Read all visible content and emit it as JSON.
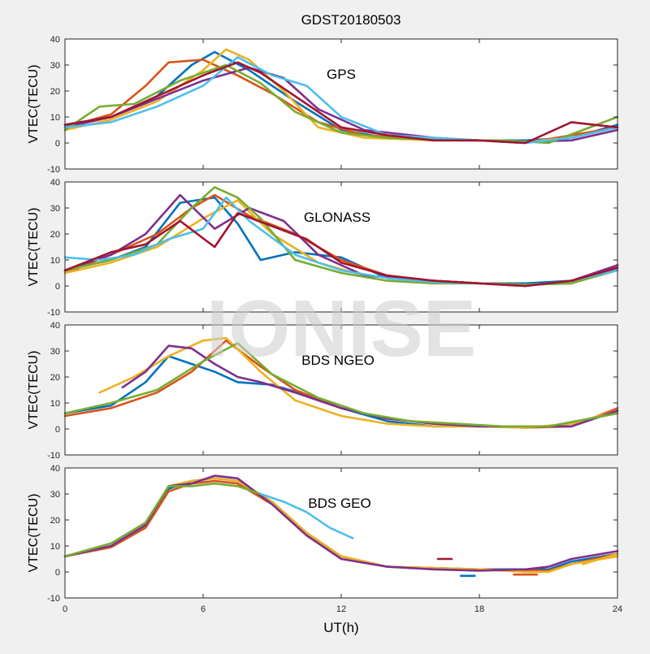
{
  "figure": {
    "title": "GDST20180503",
    "xlabel": "UT(h)",
    "watermark": "IONISE"
  },
  "colors": {
    "background": "#f0f0f0",
    "axes_face": "#ffffff",
    "series_palette": [
      "#0072bd",
      "#d95319",
      "#edb120",
      "#7e2f8e",
      "#77ac30",
      "#4dbeee",
      "#a2142f"
    ]
  },
  "chart_data": [
    {
      "type": "line",
      "label": "GPS",
      "xlabel": "",
      "ylabel": "VTEC(TECU)",
      "xlim": [
        0,
        24
      ],
      "ylim": [
        -10,
        40
      ],
      "xticks": [
        0,
        6,
        12,
        18,
        24
      ],
      "yticks": [
        -10,
        0,
        10,
        20,
        30,
        40
      ],
      "grid": false,
      "series": [
        {
          "x": [
            0,
            2,
            4,
            5.5,
            6.5,
            8,
            10,
            12,
            14,
            16,
            18,
            20,
            22,
            24
          ],
          "y": [
            7,
            10,
            18,
            30,
            35,
            28,
            16,
            5,
            2,
            1.5,
            1,
            1,
            2,
            7
          ]
        },
        {
          "x": [
            0,
            2,
            3.5,
            4.5,
            6,
            7.5,
            9,
            11,
            13,
            16,
            18,
            20,
            22,
            24
          ],
          "y": [
            6,
            11,
            22,
            31,
            32,
            26,
            19,
            8,
            3,
            1.5,
            1,
            0,
            3,
            6
          ]
        },
        {
          "x": [
            0,
            2,
            4,
            6,
            7,
            8,
            9.5,
            11,
            13,
            16,
            18,
            20,
            22,
            24
          ],
          "y": [
            5,
            9,
            16,
            28,
            36,
            32,
            20,
            6,
            2,
            1,
            1,
            0.5,
            2,
            6
          ]
        },
        {
          "x": [
            0,
            2,
            4,
            6,
            8,
            9.5,
            11,
            13,
            16,
            18,
            20,
            22,
            24
          ],
          "y": [
            6,
            10,
            17,
            24,
            29,
            25,
            13,
            5,
            2,
            1,
            0.5,
            1,
            5
          ]
        },
        {
          "x": [
            0,
            1.5,
            3,
            5,
            7,
            8.5,
            10,
            12,
            14,
            17,
            19,
            21,
            24
          ],
          "y": [
            5,
            14,
            15,
            24,
            30,
            23,
            12,
            4,
            2,
            1,
            1,
            0,
            10
          ]
        },
        {
          "x": [
            0,
            2,
            4,
            6,
            7.5,
            9,
            10.5,
            12,
            14,
            16,
            18,
            20,
            22,
            24
          ],
          "y": [
            6,
            8,
            14,
            22,
            33,
            26,
            22,
            10,
            3,
            2,
            1,
            0,
            2,
            6
          ]
        },
        {
          "x": [
            0,
            2,
            4,
            6,
            7.5,
            8.5,
            10,
            12,
            14,
            16,
            18,
            20,
            22,
            24
          ],
          "y": [
            7,
            10,
            18,
            26,
            31,
            27,
            18,
            6,
            3,
            1,
            1,
            0,
            8,
            6
          ]
        }
      ]
    },
    {
      "type": "line",
      "label": "GLONASS",
      "xlabel": "",
      "ylabel": "VTEC(TECU)",
      "xlim": [
        0,
        24
      ],
      "ylim": [
        -10,
        40
      ],
      "xticks": [
        0,
        6,
        12,
        18,
        24
      ],
      "yticks": [
        -10,
        0,
        10,
        20,
        30,
        40
      ],
      "grid": false,
      "series": [
        {
          "x": [
            0,
            2,
            3.5,
            5,
            6.5,
            7.5,
            8.5,
            10,
            12,
            14,
            16,
            18,
            20,
            22,
            24
          ],
          "y": [
            6,
            10,
            15,
            32,
            34,
            24,
            10,
            13,
            11,
            3,
            2,
            1,
            1,
            2,
            7
          ]
        },
        {
          "x": [
            0,
            2,
            4,
            5.5,
            6.5,
            8,
            10,
            12,
            14,
            16,
            18,
            20,
            22,
            24
          ],
          "y": [
            5,
            12,
            20,
            30,
            35,
            27,
            20,
            10,
            4,
            2,
            1,
            0.5,
            1,
            8
          ]
        },
        {
          "x": [
            0,
            2,
            4,
            6,
            7.5,
            9,
            11,
            13,
            16,
            18,
            20,
            22,
            24
          ],
          "y": [
            5,
            9,
            15,
            26,
            33,
            20,
            9,
            4,
            2,
            1,
            0.5,
            1,
            7
          ]
        },
        {
          "x": [
            0,
            2,
            3.5,
            5,
            6.5,
            8,
            9.5,
            11,
            13,
            16,
            18,
            20,
            22,
            24
          ],
          "y": [
            6,
            12,
            20,
            35,
            22,
            30,
            25,
            12,
            4,
            2,
            1,
            0,
            2,
            8
          ]
        },
        {
          "x": [
            0,
            2,
            4,
            5.5,
            6.5,
            7.5,
            8.5,
            10,
            12,
            14,
            16,
            18,
            20,
            22,
            24
          ],
          "y": [
            6,
            10,
            16,
            30,
            38,
            34,
            26,
            10,
            5,
            2,
            1,
            1,
            0.5,
            1,
            6
          ]
        },
        {
          "x": [
            0,
            1.5,
            3,
            4.5,
            6,
            7,
            8,
            10,
            12,
            14,
            16,
            18,
            20,
            22,
            24
          ],
          "y": [
            11,
            10,
            12,
            18,
            22,
            34,
            25,
            12,
            6,
            3,
            1.5,
            1,
            0,
            2,
            6
          ]
        },
        {
          "x": [
            0,
            2,
            3.5,
            5,
            6.5,
            7.5,
            9,
            10.5,
            12,
            14,
            16,
            18,
            20,
            22,
            24
          ],
          "y": [
            6,
            13,
            16,
            25,
            15,
            28,
            23,
            18,
            9,
            4,
            2,
            1,
            0,
            2,
            7
          ]
        }
      ]
    },
    {
      "type": "line",
      "label": "BDS NGEO",
      "xlabel": "",
      "ylabel": "VTEC(TECU)",
      "xlim": [
        0,
        24
      ],
      "ylim": [
        -10,
        40
      ],
      "xticks": [
        0,
        6,
        12,
        18,
        24
      ],
      "yticks": [
        -10,
        0,
        10,
        20,
        30,
        40
      ],
      "grid": false,
      "series": [
        {
          "x": [
            0,
            2,
            3.5,
            4.5,
            5.5,
            6.5,
            7.5,
            9,
            10.5,
            12,
            14,
            16,
            18,
            20,
            22,
            24
          ],
          "y": [
            6,
            9,
            18,
            28,
            25,
            22,
            18,
            17,
            13,
            8,
            3,
            1,
            1,
            1,
            1,
            7
          ]
        },
        {
          "x": [
            0,
            2,
            4,
            5.5,
            7,
            8.5,
            10,
            12,
            14,
            16,
            18,
            20,
            22,
            24
          ],
          "y": [
            5,
            8,
            14,
            22,
            34,
            24,
            15,
            8,
            4,
            2,
            1,
            0.5,
            1,
            8
          ]
        },
        {
          "x": [
            1.5,
            3,
            4.5,
            6,
            7,
            8.5,
            10,
            12,
            14,
            16,
            18,
            20,
            22,
            24
          ],
          "y": [
            14,
            20,
            28,
            34,
            35,
            22,
            11,
            5,
            2,
            1,
            1,
            0.5,
            2,
            7
          ]
        },
        {
          "x": [
            2.5,
            3.5,
            4.5,
            5.5,
            6.5,
            7.5,
            8.5,
            10,
            12,
            14,
            16,
            18,
            20,
            22,
            24
          ],
          "y": [
            16,
            22,
            32,
            31,
            25,
            20,
            18,
            14,
            8,
            4,
            2,
            1,
            1,
            1,
            7
          ]
        },
        {
          "x": [
            0,
            2,
            4,
            6,
            7.5,
            9,
            11,
            13,
            15,
            17,
            19,
            21,
            24
          ],
          "y": [
            6,
            10,
            15,
            26,
            33,
            21,
            12,
            6,
            3,
            2,
            1,
            1,
            6
          ]
        }
      ]
    },
    {
      "type": "line",
      "label": "BDS GEO",
      "xlabel": "UT(h)",
      "ylabel": "VTEC(TECU)",
      "xlim": [
        0,
        24
      ],
      "ylim": [
        -10,
        40
      ],
      "xticks": [
        0,
        6,
        12,
        18,
        24
      ],
      "yticks": [
        -10,
        0,
        10,
        20,
        30,
        40
      ],
      "grid": false,
      "series": [
        {
          "x": [
            0,
            2,
            3.5,
            4.5,
            5.5,
            6.5,
            7.5,
            9,
            10.5,
            12,
            14,
            16,
            18,
            20,
            21,
            22,
            24
          ],
          "y": [
            6,
            10,
            18,
            32,
            35,
            36,
            35,
            27,
            15,
            6,
            2,
            1.5,
            1,
            1,
            1,
            4,
            7
          ]
        },
        {
          "x": [
            0,
            2,
            3.5,
            4.5,
            5.5,
            6.5,
            7.5,
            9,
            10.5,
            12,
            14,
            16,
            18,
            20,
            21,
            22,
            24
          ],
          "y": [
            6,
            9.5,
            17,
            31,
            34,
            35,
            34,
            26,
            14,
            6,
            2,
            1.5,
            1,
            0.5,
            0.5,
            3,
            7
          ]
        },
        {
          "x": [
            0,
            2,
            3.5,
            4.5,
            5.5,
            6.5,
            7.5,
            9,
            10.5,
            12,
            14,
            16,
            18,
            20,
            21,
            22,
            24
          ],
          "y": [
            6,
            10,
            18,
            33,
            35,
            36,
            35,
            27,
            15,
            6,
            2,
            1.5,
            1,
            0,
            0,
            3,
            6
          ]
        },
        {
          "x": [
            0,
            2,
            3.5,
            4.5,
            5.5,
            6.5,
            7.5,
            9,
            10.5,
            12,
            14,
            16,
            18,
            20,
            21,
            22,
            24
          ],
          "y": [
            6,
            10,
            18,
            33,
            34,
            37,
            36,
            26,
            14,
            5,
            2,
            1,
            0.5,
            1,
            2,
            5,
            8
          ]
        },
        {
          "x": [
            0,
            2,
            3.5,
            4.5,
            5.5,
            6.5,
            7.5,
            8.5
          ],
          "y": [
            6,
            11,
            19,
            33,
            33,
            34,
            33,
            30
          ]
        },
        {
          "x": [
            8.5,
            9.5,
            10.5,
            11.5,
            12.5
          ],
          "y": [
            30,
            27,
            23,
            17,
            13
          ]
        },
        {
          "x": [
            16.2,
            16.8
          ],
          "y": [
            5,
            5
          ]
        },
        {
          "x": [
            17.2,
            17.8
          ],
          "y": [
            -1.5,
            -1.5
          ]
        },
        {
          "x": [
            19.5,
            20.5
          ],
          "y": [
            -1,
            -1
          ]
        },
        {
          "x": [
            22.5,
            24
          ],
          "y": [
            3,
            7
          ]
        }
      ]
    }
  ]
}
